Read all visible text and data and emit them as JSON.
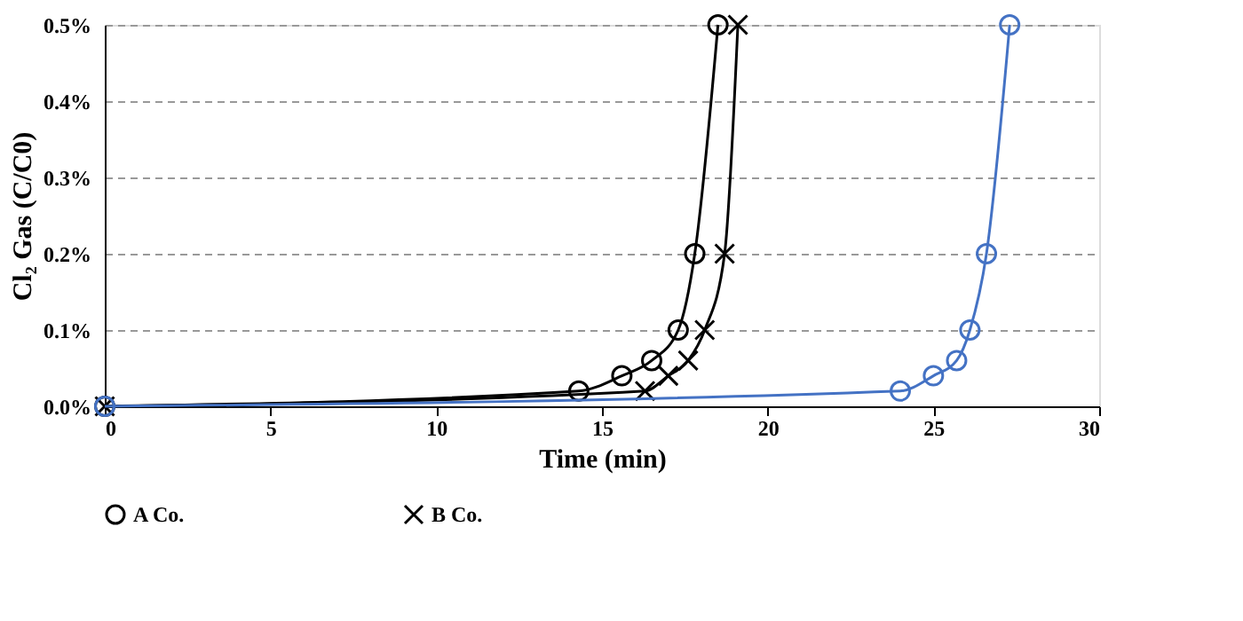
{
  "chart_data": {
    "type": "line",
    "xlabel": "Time (min)",
    "ylabel": "Cl₂ Gas (C/C0)",
    "xlim": [
      0,
      30
    ],
    "xticks": [
      0,
      5,
      10,
      15,
      20,
      25,
      30
    ],
    "ylim": [
      0,
      0.5
    ],
    "yticks": [
      {
        "value": 0,
        "label": "0.0%"
      },
      {
        "value": 0.1,
        "label": "0.1%"
      },
      {
        "value": 0.2,
        "label": "0.2%"
      },
      {
        "value": 0.3,
        "label": "0.3%"
      },
      {
        "value": 0.4,
        "label": "0.4%"
      },
      {
        "value": 0.5,
        "label": "0.5%"
      }
    ],
    "grid": "y",
    "legend": "bottom",
    "series": [
      {
        "name": "A Co.",
        "color": "#000000",
        "marker": "circle",
        "x": [
          0,
          14.3,
          15.6,
          16.5,
          17.3,
          17.8,
          18.5
        ],
        "values": [
          0,
          0.02,
          0.04,
          0.06,
          0.1,
          0.2,
          0.5
        ]
      },
      {
        "name": "B Co.",
        "color": "#000000",
        "marker": "cross",
        "x": [
          0,
          16.3,
          17.0,
          17.6,
          18.1,
          18.7,
          19.1
        ],
        "values": [
          0,
          0.02,
          0.04,
          0.06,
          0.1,
          0.2,
          0.5
        ]
      },
      {
        "color": "#4472c4",
        "marker": "circle",
        "x": [
          0,
          24.0,
          25.0,
          25.7,
          26.1,
          26.6,
          27.3
        ],
        "values": [
          0,
          0.02,
          0.04,
          0.06,
          0.1,
          0.2,
          0.5
        ]
      }
    ]
  }
}
